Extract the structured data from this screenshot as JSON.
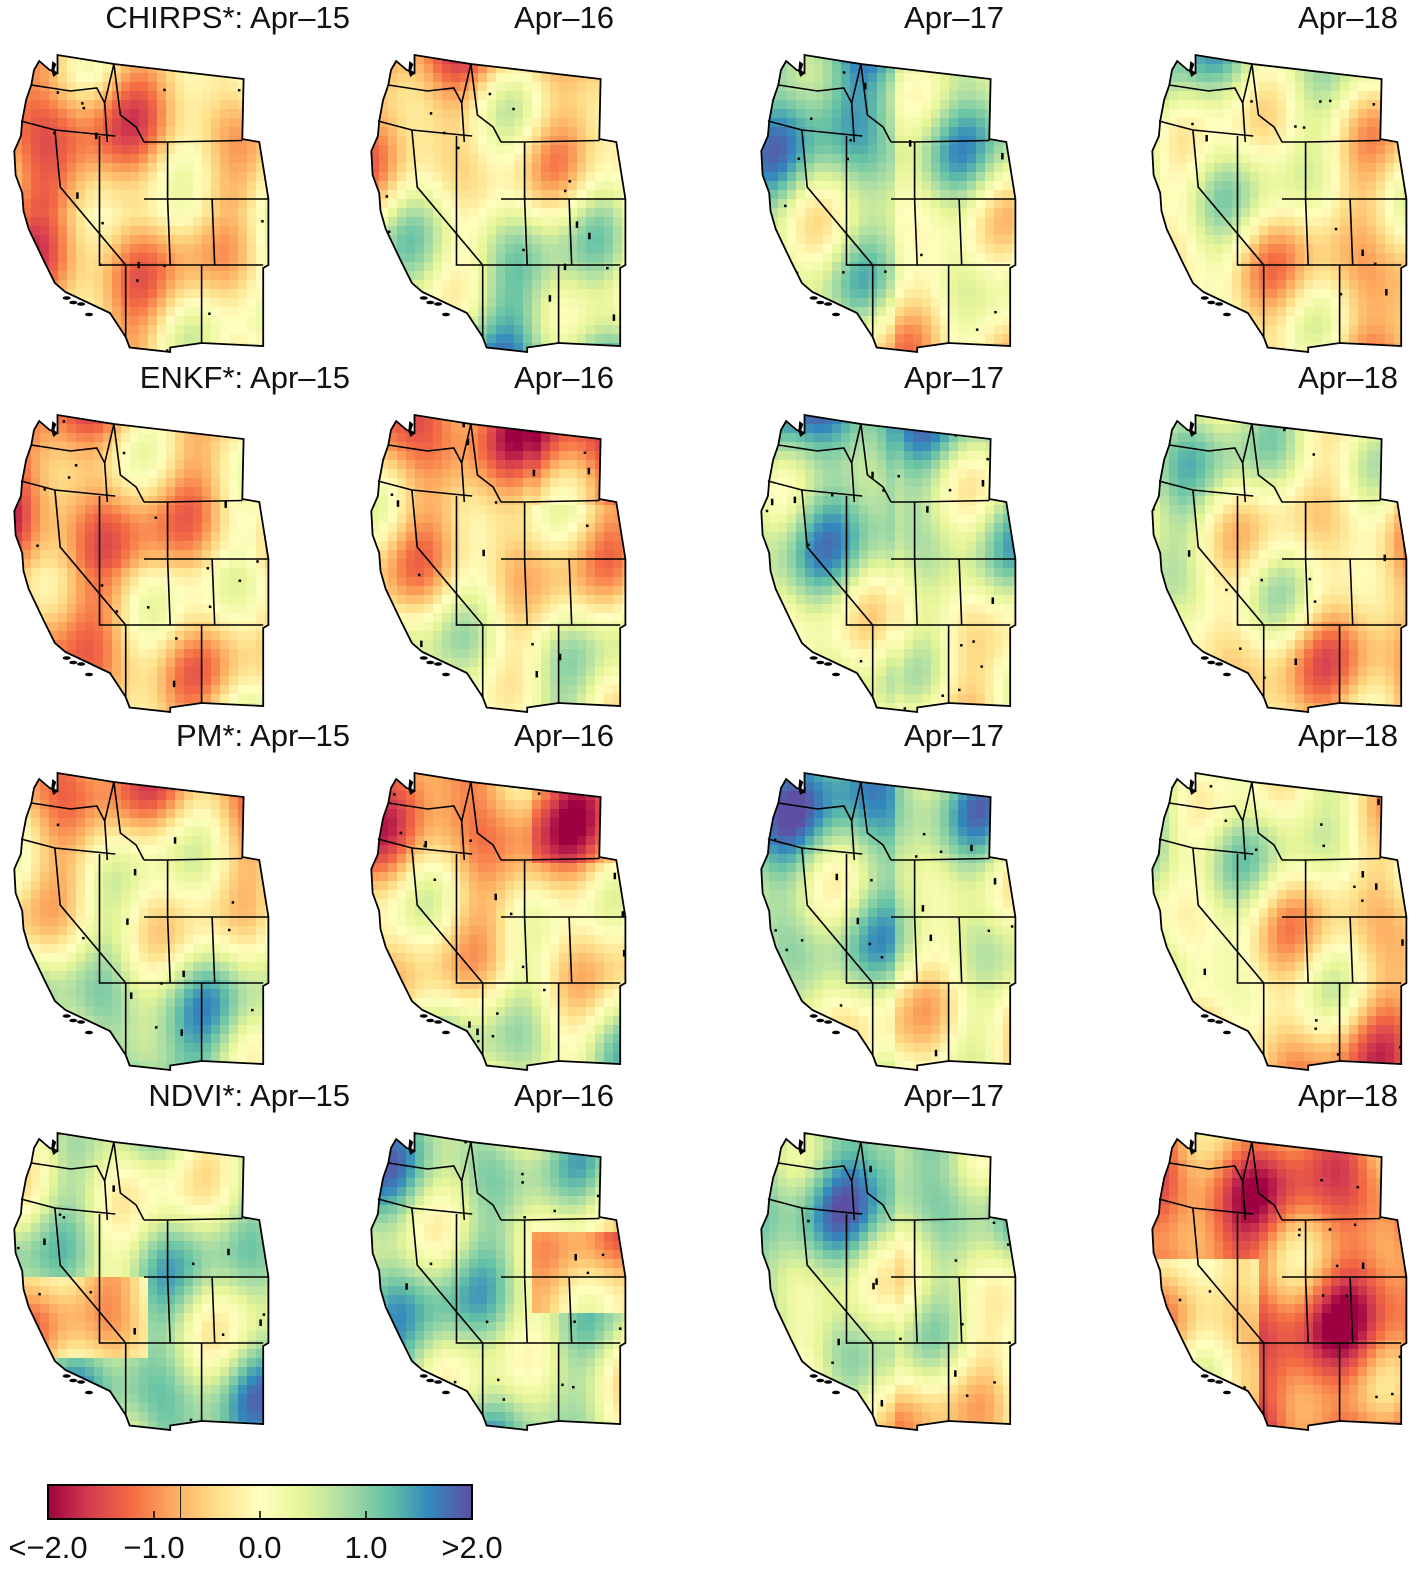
{
  "panels": [
    {
      "row": 0,
      "col": 0,
      "title": "CHIRPS*: Apr–15",
      "pattern": "dry_west"
    },
    {
      "row": 0,
      "col": 1,
      "title": "Apr–16",
      "pattern": "wet_south"
    },
    {
      "row": 0,
      "col": 2,
      "title": "Apr–17",
      "pattern": "wet_north"
    },
    {
      "row": 0,
      "col": 3,
      "title": "Apr–18",
      "pattern": "dry_southeast"
    },
    {
      "row": 1,
      "col": 0,
      "title": "ENKF*: Apr–15",
      "pattern": "dry_west"
    },
    {
      "row": 1,
      "col": 1,
      "title": "Apr–16",
      "pattern": "dry_north"
    },
    {
      "row": 1,
      "col": 2,
      "title": "Apr–17",
      "pattern": "wet_north"
    },
    {
      "row": 1,
      "col": 3,
      "title": "Apr–18",
      "pattern": "dry_southeast"
    },
    {
      "row": 2,
      "col": 0,
      "title": "PM*: Apr–15",
      "pattern": "wet_south"
    },
    {
      "row": 2,
      "col": 1,
      "title": "Apr–16",
      "pattern": "dry_north"
    },
    {
      "row": 2,
      "col": 2,
      "title": "Apr–17",
      "pattern": "wet_north"
    },
    {
      "row": 2,
      "col": 3,
      "title": "Apr–18",
      "pattern": "dry_southeast"
    },
    {
      "row": 3,
      "col": 0,
      "title": "NDVI*: Apr–15",
      "pattern": "neutral"
    },
    {
      "row": 3,
      "col": 1,
      "title": "Apr–16",
      "pattern": "wet_west"
    },
    {
      "row": 3,
      "col": 2,
      "title": "Apr–17",
      "pattern": "wet_north"
    },
    {
      "row": 3,
      "col": 3,
      "title": "Apr–18",
      "pattern": "dry_all"
    }
  ],
  "colorbar": {
    "min": -2.0,
    "max": 2.0,
    "tick_labels": [
      "<−2.0",
      "−1.0",
      "0.0",
      "1.0",
      ">2.0"
    ],
    "tick_values": [
      -2.0,
      -1.0,
      0.0,
      1.0,
      2.0
    ],
    "colors": [
      "#9e0142",
      "#d53e4f",
      "#f46d43",
      "#fdae61",
      "#fee08b",
      "#ffffbf",
      "#e6f598",
      "#abdda4",
      "#66c2a5",
      "#3288bd",
      "#5e4fa2"
    ]
  }
}
